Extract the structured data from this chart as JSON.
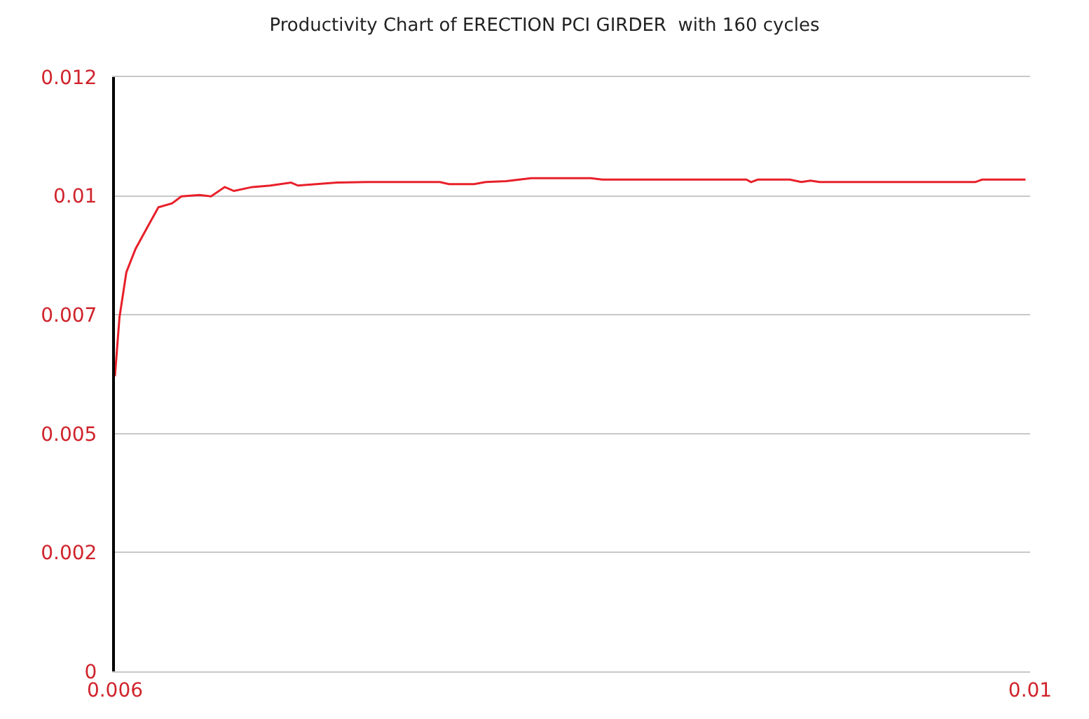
{
  "chart_data": {
    "type": "line",
    "title": "Productivity Chart of ERECTION PCI GIRDER  with 160 cycles",
    "x": [
      0.006,
      0.00602,
      0.00605,
      0.00609,
      0.00613,
      0.00619,
      0.00625,
      0.00629,
      0.00637,
      0.00642,
      0.00648,
      0.00652,
      0.0066,
      0.00668,
      0.00677,
      0.0068,
      0.00697,
      0.0071,
      0.00742,
      0.00746,
      0.00757,
      0.00762,
      0.00771,
      0.00782,
      0.00808,
      0.00813,
      0.00876,
      0.00878,
      0.00881,
      0.00895,
      0.009,
      0.00904,
      0.00908,
      0.00976,
      0.00979,
      0.00998
    ],
    "series": [
      {
        "color": "#e8202a",
        "values": [
          0.00596,
          0.00715,
          0.00806,
          0.00853,
          0.00887,
          0.00937,
          0.00945,
          0.00959,
          0.00962,
          0.00959,
          0.00978,
          0.0097,
          0.00978,
          0.00981,
          0.00987,
          0.00981,
          0.00987,
          0.00988,
          0.00988,
          0.00984,
          0.00984,
          0.00988,
          0.0099,
          0.00996,
          0.00996,
          0.00993,
          0.00993,
          0.00988,
          0.00993,
          0.00993,
          0.00988,
          0.00991,
          0.00988,
          0.00988,
          0.00993,
          0.00993
        ]
      }
    ],
    "xlim": [
      0.006,
      0.01
    ],
    "xticks": [
      0.006,
      0.01
    ],
    "ylim": [
      0,
      0.012
    ],
    "yticks": [
      0,
      {
        "value": 0.0024,
        "label": "0.002"
      },
      {
        "value": 0.0048,
        "label": "0.005"
      },
      {
        "value": 0.0072,
        "label": "0.007"
      },
      {
        "value": 0.0096,
        "label": "0.01"
      },
      0.012
    ],
    "grid": "y",
    "marker": "none",
    "line_style": "solid"
  }
}
